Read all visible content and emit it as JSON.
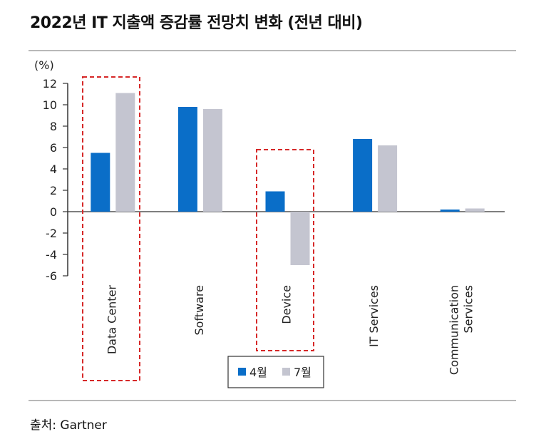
{
  "title": "2022년 IT 지출액 증감률 전망치 변화 (전년 대비)",
  "source": "출처: Gartner",
  "colors": {
    "apr": "#0a6ec8",
    "jul": "#c4c5d0",
    "highlight": "#d62828"
  },
  "chart_data": {
    "type": "bar",
    "title": "2022년 IT 지출액 증감률 전망치 변화 (전년 대비)",
    "ylabel": "(%)",
    "ylim": [
      -6,
      12
    ],
    "yticks": [
      12,
      10,
      8,
      6,
      4,
      2,
      0,
      -2,
      -4,
      -6
    ],
    "categories": [
      "Data Center",
      "Software",
      "Device",
      "IT Services",
      "Communication Services"
    ],
    "category_lines": [
      [
        "Data Center"
      ],
      [
        "Software"
      ],
      [
        "Device"
      ],
      [
        "IT Services"
      ],
      [
        "Communication",
        "Services"
      ]
    ],
    "series": [
      {
        "name": "4월",
        "values": [
          5.5,
          9.8,
          1.9,
          6.8,
          0.2
        ]
      },
      {
        "name": "7월",
        "values": [
          11.1,
          9.6,
          -5.0,
          6.2,
          0.3
        ]
      }
    ],
    "highlighted_categories": [
      "Data Center",
      "Device"
    ],
    "legend_position": "bottom-center",
    "grid": false
  }
}
